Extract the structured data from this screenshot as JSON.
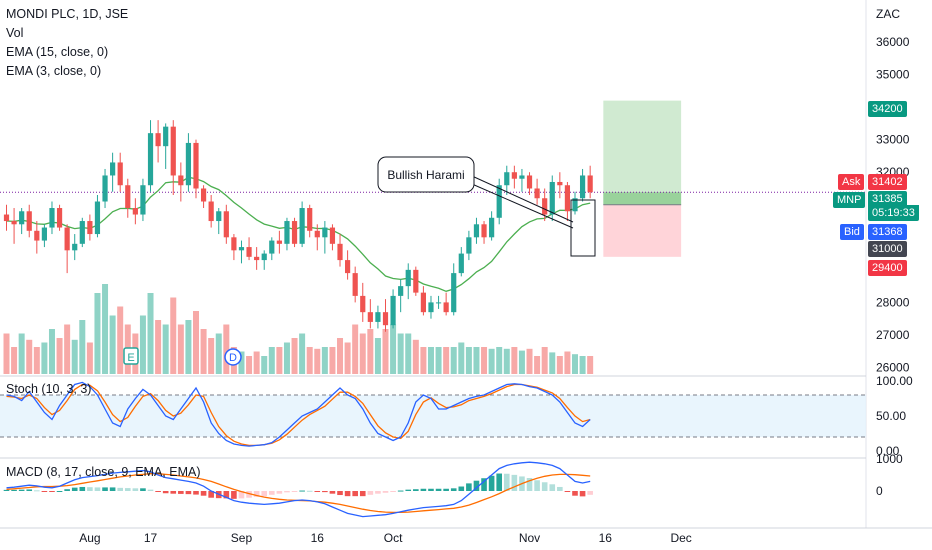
{
  "header": {
    "title": "MONDI PLC, 1D, JSE",
    "indicators": [
      "Vol",
      "EMA (15, close, 0)",
      "EMA (3, close, 0)"
    ]
  },
  "axis": {
    "currency": "ZAC"
  },
  "chart_data": {
    "type": "candlestick",
    "y_ticks": [
      36000,
      35000,
      33000,
      32000,
      28000,
      27000,
      26000
    ],
    "ylim": [
      25800,
      36800
    ],
    "x_labels": [
      {
        "label": "Aug",
        "idx": 11
      },
      {
        "label": "17",
        "idx": 19
      },
      {
        "label": "Sep",
        "idx": 31
      },
      {
        "label": "16",
        "idx": 41
      },
      {
        "label": "Oct",
        "idx": 51
      },
      {
        "label": "Nov",
        "idx": 69
      },
      {
        "label": "16",
        "idx": 79
      },
      {
        "label": "Dec",
        "idx": 89
      }
    ],
    "candles": [
      [
        30700,
        31000,
        30200,
        30500
      ],
      [
        30500,
        30900,
        29800,
        30400
      ],
      [
        30400,
        30900,
        30100,
        30800
      ],
      [
        30800,
        31000,
        30000,
        30200
      ],
      [
        30200,
        30500,
        29500,
        29900
      ],
      [
        29900,
        30400,
        29700,
        30300
      ],
      [
        30300,
        31100,
        30100,
        30900
      ],
      [
        30900,
        31000,
        30200,
        30300
      ],
      [
        30300,
        30400,
        28900,
        29600
      ],
      [
        29600,
        30100,
        29300,
        29800
      ],
      [
        29800,
        30600,
        29700,
        30500
      ],
      [
        30500,
        30700,
        29900,
        30100
      ],
      [
        30100,
        31300,
        30000,
        31100
      ],
      [
        31100,
        32100,
        30900,
        31900
      ],
      [
        31900,
        32600,
        31400,
        32300
      ],
      [
        32300,
        32600,
        31400,
        31600
      ],
      [
        31600,
        31800,
        30600,
        30900
      ],
      [
        30900,
        31200,
        30400,
        30700
      ],
      [
        30700,
        31800,
        30500,
        31600
      ],
      [
        31600,
        33600,
        31400,
        33200
      ],
      [
        33200,
        33600,
        32300,
        32800
      ],
      [
        32800,
        33500,
        32100,
        33400
      ],
      [
        33400,
        33600,
        31300,
        31900
      ],
      [
        31900,
        32300,
        31100,
        31600
      ],
      [
        31600,
        33200,
        31400,
        32900
      ],
      [
        32900,
        33000,
        31200,
        31500
      ],
      [
        31500,
        31600,
        30900,
        31100
      ],
      [
        31100,
        31300,
        30300,
        30500
      ],
      [
        30500,
        30900,
        30100,
        30800
      ],
      [
        30800,
        31000,
        29800,
        30000
      ],
      [
        30000,
        30100,
        29300,
        29600
      ],
      [
        29600,
        29900,
        29200,
        29700
      ],
      [
        29700,
        30000,
        29300,
        29400
      ],
      [
        29400,
        29700,
        29000,
        29300
      ],
      [
        29300,
        29600,
        29000,
        29500
      ],
      [
        29500,
        30000,
        29300,
        29900
      ],
      [
        29900,
        30200,
        29500,
        29800
      ],
      [
        29800,
        30600,
        29600,
        30500
      ],
      [
        30500,
        30600,
        29700,
        29800
      ],
      [
        29800,
        31100,
        29700,
        30900
      ],
      [
        30900,
        31000,
        30000,
        30200
      ],
      [
        30200,
        30400,
        29600,
        30000
      ],
      [
        30000,
        30500,
        29500,
        30300
      ],
      [
        30300,
        30400,
        29600,
        29800
      ],
      [
        29800,
        30100,
        29100,
        29300
      ],
      [
        29300,
        29600,
        28700,
        28900
      ],
      [
        28900,
        29100,
        28000,
        28200
      ],
      [
        28200,
        28600,
        27400,
        27700
      ],
      [
        27700,
        28100,
        27200,
        27400
      ],
      [
        27400,
        27900,
        27200,
        27700
      ],
      [
        27700,
        28100,
        27100,
        27300
      ],
      [
        27300,
        28400,
        27200,
        28200
      ],
      [
        28200,
        28700,
        27700,
        28500
      ],
      [
        28500,
        29200,
        28100,
        29000
      ],
      [
        29000,
        29100,
        28200,
        28300
      ],
      [
        28300,
        28500,
        27600,
        27700
      ],
      [
        27700,
        28200,
        27500,
        28000
      ],
      [
        28000,
        28200,
        27800,
        28000
      ],
      [
        28000,
        28300,
        27600,
        27700
      ],
      [
        27700,
        29200,
        27600,
        28900
      ],
      [
        28900,
        29700,
        28800,
        29500
      ],
      [
        29500,
        30200,
        29300,
        30000
      ],
      [
        30000,
        30600,
        29800,
        30400
      ],
      [
        30400,
        30500,
        29800,
        30000
      ],
      [
        30000,
        30800,
        29900,
        30600
      ],
      [
        30600,
        31800,
        30400,
        31600
      ],
      [
        31600,
        32200,
        31300,
        32000
      ],
      [
        32000,
        32200,
        31500,
        31800
      ],
      [
        31800,
        32100,
        31400,
        31900
      ],
      [
        31900,
        32000,
        31300,
        31500
      ],
      [
        31500,
        31800,
        31000,
        31200
      ],
      [
        31200,
        31500,
        30500,
        30700
      ],
      [
        30700,
        31900,
        30500,
        31700
      ],
      [
        31700,
        32000,
        31200,
        31600
      ],
      [
        31600,
        31700,
        30500,
        30800
      ],
      [
        30800,
        31400,
        30700,
        31200
      ],
      [
        31200,
        32100,
        31100,
        31900
      ],
      [
        31900,
        32200,
        31200,
        31385
      ]
    ],
    "volumes": [
      0.45,
      0.3,
      0.45,
      0.38,
      0.3,
      0.35,
      0.5,
      0.4,
      0.55,
      0.38,
      0.6,
      0.35,
      0.9,
      1.0,
      0.65,
      0.75,
      0.55,
      0.45,
      0.65,
      0.9,
      0.6,
      0.55,
      0.85,
      0.55,
      0.6,
      0.7,
      0.5,
      0.4,
      0.45,
      0.55,
      0.3,
      0.25,
      0.2,
      0.25,
      0.2,
      0.3,
      0.3,
      0.35,
      0.4,
      0.45,
      0.3,
      0.28,
      0.3,
      0.3,
      0.4,
      0.35,
      0.55,
      0.45,
      0.5,
      0.4,
      0.5,
      0.55,
      0.45,
      0.45,
      0.38,
      0.3,
      0.3,
      0.3,
      0.3,
      0.3,
      0.35,
      0.3,
      0.3,
      0.3,
      0.28,
      0.3,
      0.28,
      0.3,
      0.26,
      0.28,
      0.2,
      0.3,
      0.24,
      0.2,
      0.25,
      0.22,
      0.2,
      0.2
    ],
    "stoch": {
      "label": "Stoch (10, 3, 3)",
      "y_ticks": [
        "100.00",
        "50.00",
        "0.00"
      ],
      "k": [
        80,
        78,
        72,
        85,
        70,
        55,
        45,
        65,
        80,
        95,
        98,
        92,
        80,
        60,
        40,
        35,
        60,
        75,
        88,
        80,
        65,
        50,
        45,
        60,
        75,
        90,
        70,
        40,
        25,
        15,
        10,
        8,
        7,
        8,
        9,
        12,
        20,
        30,
        40,
        50,
        55,
        60,
        70,
        80,
        90,
        80,
        75,
        60,
        40,
        25,
        20,
        15,
        20,
        40,
        70,
        80,
        75,
        60,
        60,
        65,
        70,
        75,
        78,
        80,
        85,
        90,
        95,
        96,
        95,
        92,
        90,
        85,
        80,
        70,
        55,
        40,
        35,
        45
      ],
      "d": [
        78,
        77,
        75,
        80,
        75,
        62,
        52,
        58,
        72,
        88,
        95,
        94,
        86,
        70,
        52,
        42,
        48,
        64,
        78,
        82,
        72,
        58,
        50,
        54,
        66,
        80,
        78,
        55,
        35,
        22,
        14,
        10,
        8,
        8,
        9,
        11,
        16,
        24,
        34,
        44,
        52,
        58,
        64,
        74,
        84,
        84,
        78,
        68,
        52,
        36,
        26,
        20,
        18,
        28,
        52,
        70,
        76,
        68,
        62,
        63,
        66,
        72,
        75,
        78,
        82,
        87,
        92,
        95,
        95,
        93,
        91,
        87,
        83,
        75,
        62,
        50,
        42,
        45
      ],
      "bands": [
        80,
        20
      ]
    },
    "macd": {
      "label": "MACD (8, 17, close, 9, EMA, EMA)",
      "y_ticks": [
        "1000",
        "0"
      ],
      "macd": [
        100,
        120,
        150,
        180,
        160,
        120,
        100,
        150,
        250,
        350,
        420,
        450,
        480,
        520,
        560,
        580,
        600,
        620,
        640,
        600,
        500,
        420,
        380,
        340,
        300,
        250,
        150,
        0,
        -100,
        -200,
        -300,
        -350,
        -380,
        -400,
        -420,
        -400,
        -380,
        -340,
        -300,
        -280,
        -300,
        -340,
        -400,
        -500,
        -600,
        -700,
        -750,
        -800,
        -780,
        -760,
        -740,
        -700,
        -650,
        -600,
        -560,
        -520,
        -500,
        -480,
        -460,
        -420,
        -300,
        -100,
        100,
        300,
        500,
        700,
        800,
        850,
        880,
        900,
        880,
        850,
        800,
        700,
        500,
        300,
        250,
        300
      ],
      "signal": [
        50,
        70,
        90,
        110,
        130,
        140,
        140,
        150,
        170,
        200,
        240,
        280,
        320,
        360,
        400,
        440,
        470,
        500,
        520,
        540,
        540,
        520,
        500,
        470,
        440,
        410,
        360,
        300,
        220,
        130,
        50,
        -20,
        -80,
        -140,
        -190,
        -230,
        -260,
        -280,
        -290,
        -300,
        -310,
        -330,
        -350,
        -380,
        -420,
        -470,
        -520,
        -570,
        -610,
        -640,
        -660,
        -670,
        -670,
        -660,
        -640,
        -620,
        -600,
        -580,
        -560,
        -540,
        -500,
        -440,
        -360,
        -270,
        -180,
        -80,
        30,
        130,
        230,
        320,
        400,
        460,
        500,
        520,
        520,
        510,
        490,
        470
      ]
    },
    "annotation": {
      "text": "Bullish Harami"
    }
  },
  "price_tags": {
    "target": "34200",
    "ask_label": "Ask",
    "ask": "31402",
    "sym_label": "MNP",
    "last": "31385",
    "countdown": "05:19:33",
    "bid_label": "Bid",
    "bid": "31368",
    "entry": "31000",
    "stop": "29400"
  },
  "position": {
    "entry": 31000,
    "target": 34200,
    "stop": 29400,
    "start_idx": 79,
    "end_idx": 89
  },
  "events": {
    "earnings": "E",
    "dividend": "D"
  },
  "colors": {
    "up": "#26a69a",
    "down": "#ef5350",
    "ema15": "#4caf50",
    "stoch_k": "#2962ff",
    "stoch_d": "#ff6d00",
    "profit": "#c8e6c9",
    "loss": "#ffcdd2"
  }
}
